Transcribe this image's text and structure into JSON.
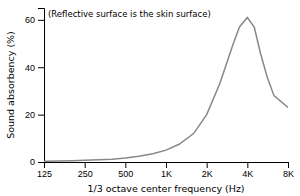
{
  "chart_data": {
    "type": "line",
    "annotation": "(Reflective surface is the skin surface)",
    "xlabel": "1/3 octave center frequency (Hz)",
    "ylabel": "Sound absorbency (%)",
    "log": "x",
    "xlim": [
      125,
      8000
    ],
    "ylim": [
      0,
      65
    ],
    "xticks": [
      125,
      250,
      500,
      {
        "value": 1000,
        "label": "1K"
      },
      {
        "value": 2000,
        "label": "2K"
      },
      {
        "value": 4000,
        "label": "4K"
      },
      {
        "value": 8000,
        "label": "8K"
      }
    ],
    "yticks": [
      0,
      20,
      40,
      60
    ],
    "x": [
      125,
      160,
      200,
      250,
      315,
      400,
      500,
      630,
      800,
      1000,
      1250,
      1600,
      2000,
      2500,
      3150,
      3500,
      4000,
      4500,
      5000,
      5600,
      6300,
      8000
    ],
    "values": [
      0.3,
      0.4,
      0.5,
      0.7,
      0.9,
      1.2,
      1.7,
      2.4,
      3.5,
      5.0,
      7.5,
      12.0,
      20.0,
      33.0,
      50.0,
      57.0,
      61.0,
      57.0,
      46.0,
      36.0,
      28.0,
      23.0
    ],
    "color": "#888888"
  }
}
